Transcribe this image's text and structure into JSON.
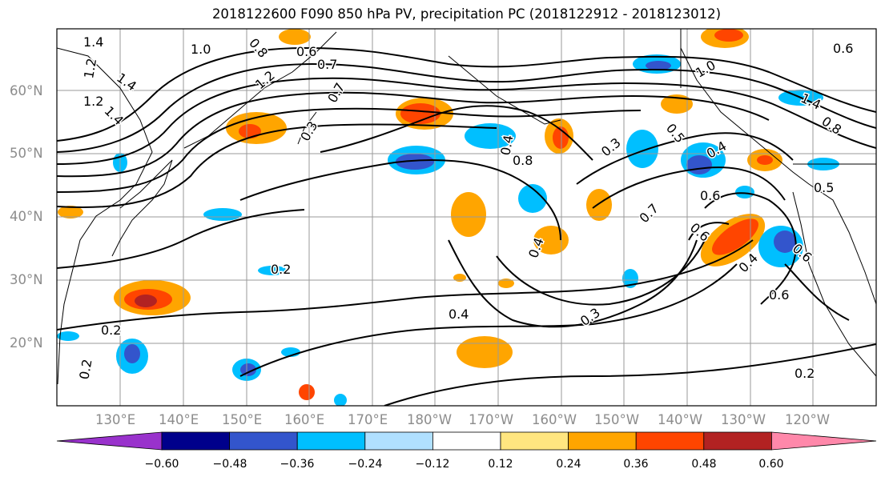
{
  "title": "2018122600 F090 850 hPa PV, precipitation PC (2018122912 - 2018123012)",
  "lat_labels": [
    "60°N",
    "50°N",
    "40°N",
    "30°N",
    "20°N"
  ],
  "lon_labels": [
    "130°E",
    "140°E",
    "150°E",
    "160°E",
    "170°E",
    "180°W",
    "170°W",
    "160°W",
    "150°W",
    "140°W",
    "130°W",
    "120°W"
  ],
  "contour_labels": [
    "1.4",
    "1.2",
    "1.0",
    "0.8",
    "0.6",
    "0.7",
    "1.4",
    "1.2",
    "1.4",
    "1.2",
    "1.0",
    "0.6",
    "1.4",
    "0.8",
    "0.7",
    "0.3",
    "0.8",
    "0.3",
    "0.5",
    "0.4",
    "0.6",
    "0.7",
    "0.6",
    "0.4",
    "0.5",
    "0.6",
    "0.4",
    "0.6",
    "0.2",
    "0.2",
    "0.4",
    "0.3",
    "0.2",
    "0.2",
    "0.4"
  ],
  "colorbar": {
    "ticks": [
      "−0.60",
      "−0.48",
      "−0.36",
      "−0.24",
      "−0.12",
      "0.12",
      "0.24",
      "0.36",
      "0.48",
      "0.60"
    ],
    "colors": [
      "#9932cc",
      "#00008b",
      "#3355cc",
      "#00bfff",
      "#b0e0ff",
      "#ffffff",
      "#ffe680",
      "#ffa500",
      "#ff4500",
      "#b22222",
      "#ff88aa"
    ]
  }
}
